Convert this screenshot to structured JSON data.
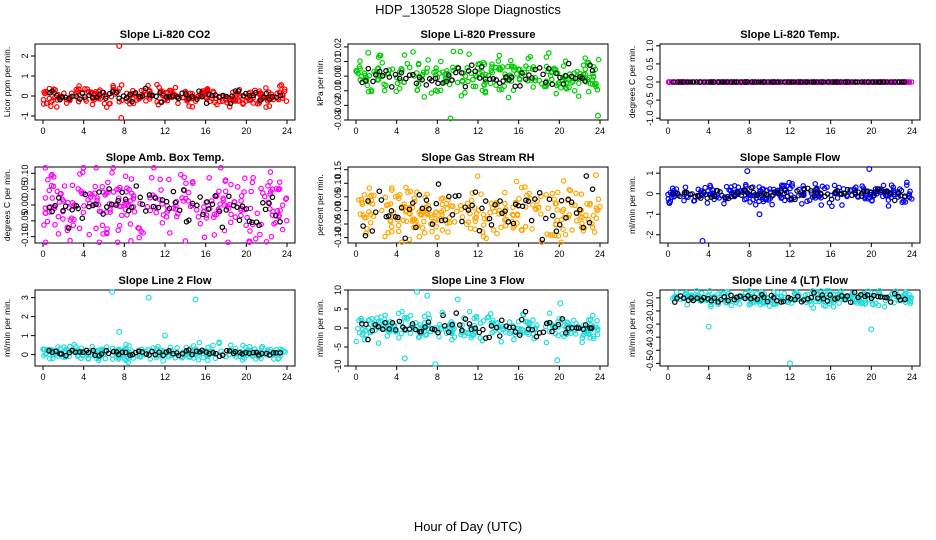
{
  "figure": {
    "title": "HDP_130528  Slope Diagnostics",
    "xlabel": "Hour of Day (UTC)"
  },
  "chart_data": [
    {
      "type": "scatter",
      "title": "Slope Li-820 CO2",
      "ylabel": "Licor ppm per min.",
      "xlim": [
        0,
        24
      ],
      "ylim": [
        -1.2,
        2.6
      ],
      "xticks": [
        0,
        4,
        8,
        12,
        16,
        20,
        24
      ],
      "yticks": [
        -1,
        0,
        1,
        2
      ],
      "ytick_labels": [
        "-1",
        "0",
        "1",
        "2"
      ],
      "color": "#ff0000",
      "center": 0.0,
      "spread": 0.25,
      "dark_spread": 0.15,
      "outliers": [
        [
          7.5,
          2.5
        ],
        [
          7.7,
          -1.1
        ]
      ]
    },
    {
      "type": "scatter",
      "title": "Slope Li-820 Pressure",
      "ylabel": "kPa per min.",
      "xlim": [
        0,
        24
      ],
      "ylim": [
        -0.03,
        0.022
      ],
      "xticks": [
        0,
        4,
        8,
        12,
        16,
        20,
        24
      ],
      "yticks": [
        -0.03,
        -0.02,
        -0.01,
        0.0,
        0.01,
        0.02
      ],
      "ytick_labels": [
        "-0.03",
        "-0.02",
        "-0.01",
        "0.00",
        "0.01",
        "0.02"
      ],
      "color": "#00cc00",
      "center": 0.0,
      "spread": 0.007,
      "dark_spread": 0.004,
      "outliers": [
        [
          9.3,
          -0.029
        ],
        [
          23.8,
          -0.027
        ],
        [
          1.2,
          0.016
        ]
      ]
    },
    {
      "type": "scatter",
      "title": "Slope Li-820 Temp.",
      "ylabel": "degrees C per min.",
      "xlim": [
        0,
        24
      ],
      "ylim": [
        -1.05,
        1.05
      ],
      "xticks": [
        0,
        4,
        8,
        12,
        16,
        20,
        24
      ],
      "yticks": [
        -1.0,
        -0.5,
        0.0,
        0.5,
        1.0
      ],
      "ytick_labels": [
        "-1.0",
        "-0.5",
        "0.0",
        "0.5",
        "1.0"
      ],
      "color": "#cc00cc",
      "center": 0.0,
      "spread": 0.0,
      "dark_spread": 0.0,
      "outliers": []
    },
    {
      "type": "scatter",
      "title": "Slope Amb. Box Temp.",
      "ylabel": "degrees C per min.",
      "xlim": [
        0,
        24
      ],
      "ylim": [
        -0.12,
        0.12
      ],
      "xticks": [
        0,
        4,
        8,
        12,
        16,
        20,
        24
      ],
      "yticks": [
        -0.1,
        -0.05,
        0.0,
        0.05,
        0.1
      ],
      "ytick_labels": [
        "-0.10",
        "-0.05",
        "0.00",
        "0.05",
        "0.10"
      ],
      "color": "#ff00ff",
      "center": 0.0,
      "spread": 0.06,
      "dark_spread": 0.03,
      "outliers": [
        [
          20.3,
          -0.115
        ]
      ]
    },
    {
      "type": "scatter",
      "title": "Slope Gas Stream RH",
      "ylabel": "percent per min.",
      "xlim": [
        0,
        24
      ],
      "ylim": [
        -0.12,
        0.16
      ],
      "xticks": [
        0,
        4,
        8,
        12,
        16,
        20,
        24
      ],
      "yticks": [
        -0.1,
        -0.05,
        0.0,
        0.05,
        0.1,
        0.15
      ],
      "ytick_labels": [
        "-0.10",
        "-0.05",
        "0.00",
        "0.05",
        "0.10",
        "0.15"
      ],
      "color": "#ffa500",
      "center": -0.01,
      "spread": 0.05,
      "dark_spread": 0.05,
      "outliers": [
        [
          23.6,
          0.13
        ]
      ]
    },
    {
      "type": "scatter",
      "title": "Slope Sample Flow",
      "ylabel": "ml/min per min.",
      "xlim": [
        0,
        24
      ],
      "ylim": [
        -2.4,
        1.3
      ],
      "xticks": [
        0,
        4,
        8,
        12,
        16,
        20,
        24
      ],
      "yticks": [
        -2,
        -1,
        0,
        1
      ],
      "ytick_labels": [
        "-2",
        "-1",
        "0",
        "1"
      ],
      "color": "#0000ff",
      "center": 0.0,
      "spread": 0.25,
      "dark_spread": 0.15,
      "outliers": [
        [
          3.4,
          -2.3
        ],
        [
          7.8,
          1.1
        ],
        [
          19.8,
          1.2
        ],
        [
          9.0,
          -1.0
        ]
      ]
    },
    {
      "type": "scatter",
      "title": "Slope Line 2 Flow",
      "ylabel": "ml/min per min.",
      "xlim": [
        0,
        24
      ],
      "ylim": [
        -0.6,
        3.4
      ],
      "xticks": [
        0,
        4,
        8,
        12,
        16,
        20,
        24
      ],
      "yticks": [
        0,
        1,
        2,
        3
      ],
      "ytick_labels": [
        "0",
        "1",
        "2",
        "3"
      ],
      "color": "#22dddd",
      "center": 0.1,
      "spread": 0.2,
      "dark_spread": 0.1,
      "outliers": [
        [
          6.8,
          3.3
        ],
        [
          10.4,
          3.0
        ],
        [
          15.0,
          2.9
        ],
        [
          7.5,
          1.2
        ],
        [
          12.0,
          1.0
        ]
      ]
    },
    {
      "type": "scatter",
      "title": "Slope Line 3 Flow",
      "ylabel": "ml/min per min.",
      "xlim": [
        0,
        24
      ],
      "ylim": [
        -10,
        10
      ],
      "xticks": [
        0,
        4,
        8,
        12,
        16,
        20,
        24
      ],
      "yticks": [
        -10,
        -5,
        0,
        5,
        10
      ],
      "ytick_labels": [
        "-10",
        "-5",
        "0",
        "5",
        "10"
      ],
      "color": "#22dddd",
      "center": 0.0,
      "spread": 1.8,
      "dark_spread": 1.5,
      "outliers": [
        [
          6.0,
          9.5
        ],
        [
          7.0,
          8.5
        ],
        [
          7.8,
          -9.5
        ],
        [
          8.5,
          4.0
        ],
        [
          10.0,
          7.5
        ],
        [
          19.8,
          -8.5
        ],
        [
          20.1,
          6.5
        ],
        [
          4.8,
          -8.0
        ]
      ]
    },
    {
      "type": "scatter",
      "title": "Slope Line 4 (LT) Flow",
      "ylabel": "ml/min per min.",
      "xlim": [
        0,
        24
      ],
      "ylim": [
        -0.52,
        0.06
      ],
      "xticks": [
        0,
        4,
        8,
        12,
        16,
        20,
        24
      ],
      "yticks": [
        -0.5,
        -0.4,
        -0.3,
        -0.2,
        -0.1,
        0.0
      ],
      "ytick_labels": [
        "-0.5",
        "-0.4",
        "-0.3",
        "-0.2",
        "-0.1",
        "0.0"
      ],
      "color": "#22dddd",
      "center": 0.0,
      "spread": 0.03,
      "dark_spread": 0.02,
      "outliers": [
        [
          4.0,
          -0.22
        ],
        [
          12.0,
          -0.5
        ],
        [
          20.0,
          -0.24
        ]
      ]
    }
  ]
}
